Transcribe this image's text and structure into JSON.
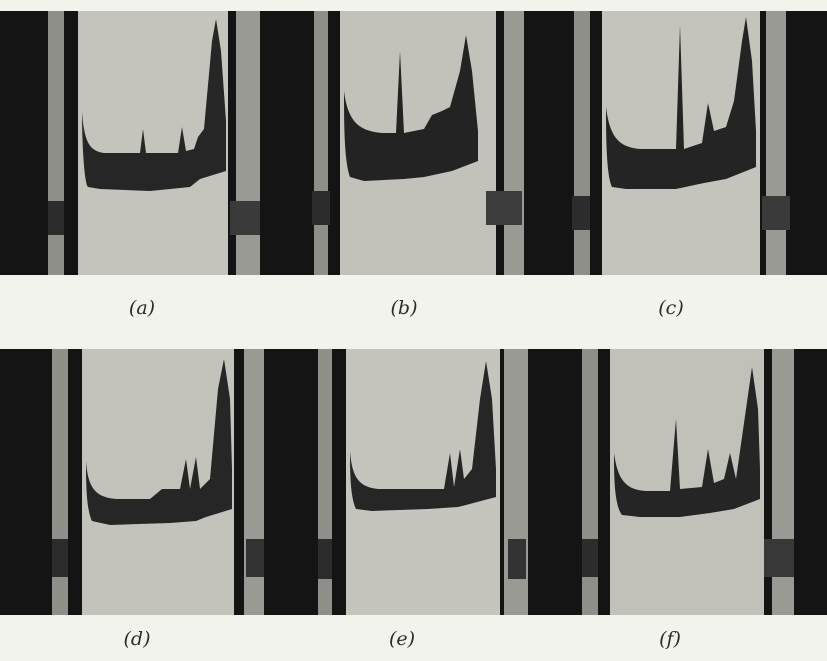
{
  "figure": {
    "panels": [
      {
        "id": "a",
        "caption": "(a)"
      },
      {
        "id": "b",
        "caption": "(b)"
      },
      {
        "id": "c",
        "caption": "(c)"
      },
      {
        "id": "d",
        "caption": "(d)"
      },
      {
        "id": "e",
        "caption": "(e)"
      },
      {
        "id": "f",
        "caption": "(f)"
      }
    ]
  }
}
